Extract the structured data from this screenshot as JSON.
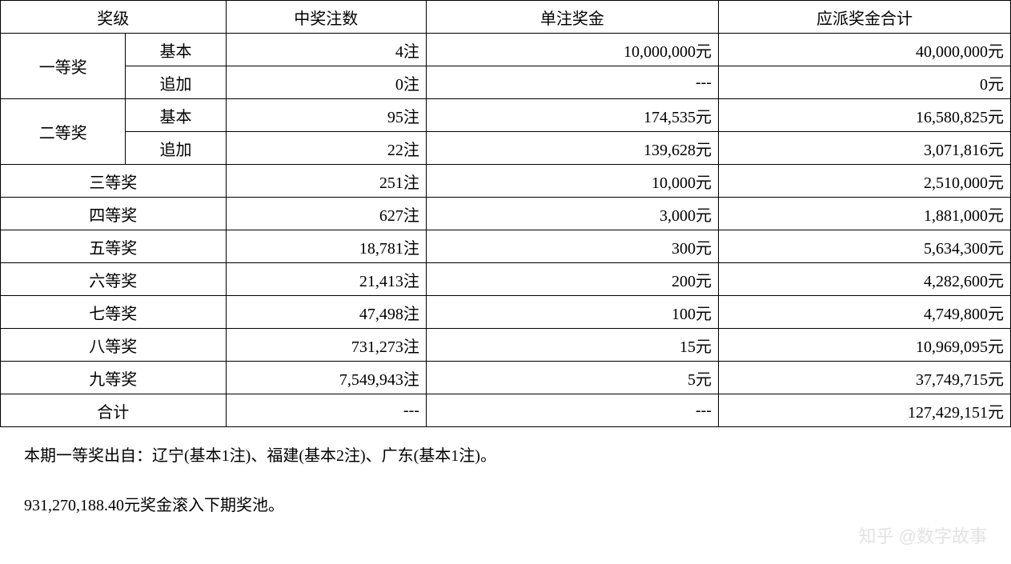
{
  "table": {
    "headers": {
      "level": "奖级",
      "count": "中奖注数",
      "per_prize": "单注奖金",
      "total": "应派奖金合计"
    },
    "rows": [
      {
        "level": "一等奖",
        "sub": "基本",
        "count": "4注",
        "per": "10,000,000元",
        "total": "40,000,000元",
        "rowspan": 2
      },
      {
        "level": "",
        "sub": "追加",
        "count": "0注",
        "per": "---",
        "total": "0元"
      },
      {
        "level": "二等奖",
        "sub": "基本",
        "count": "95注",
        "per": "174,535元",
        "total": "16,580,825元",
        "rowspan": 2
      },
      {
        "level": "",
        "sub": "追加",
        "count": "22注",
        "per": "139,628元",
        "total": "3,071,816元"
      },
      {
        "level": "三等奖",
        "count": "251注",
        "per": "10,000元",
        "total": "2,510,000元"
      },
      {
        "level": "四等奖",
        "count": "627注",
        "per": "3,000元",
        "total": "1,881,000元"
      },
      {
        "level": "五等奖",
        "count": "18,781注",
        "per": "300元",
        "total": "5,634,300元"
      },
      {
        "level": "六等奖",
        "count": "21,413注",
        "per": "200元",
        "total": "4,282,600元"
      },
      {
        "level": "七等奖",
        "count": "47,498注",
        "per": "100元",
        "total": "4,749,800元"
      },
      {
        "level": "八等奖",
        "count": "731,273注",
        "per": "15元",
        "total": "10,969,095元"
      },
      {
        "level": "九等奖",
        "count": "7,549,943注",
        "per": "5元",
        "total": "37,749,715元"
      },
      {
        "level": "合计",
        "count": "---",
        "per": "---",
        "total": "127,429,151元"
      }
    ]
  },
  "footer": {
    "line1": "本期一等奖出自：辽宁(基本1注)、福建(基本2注)、广东(基本1注)。",
    "line2": "931,270,188.40元奖金滚入下期奖池。"
  },
  "watermark": "知乎 @数字故事",
  "style": {
    "font_family": "SimSun",
    "font_size": 20,
    "border_color": "#000000",
    "background_color": "#ffffff",
    "text_color": "#000000",
    "watermark_color": "#d0d0d0"
  }
}
